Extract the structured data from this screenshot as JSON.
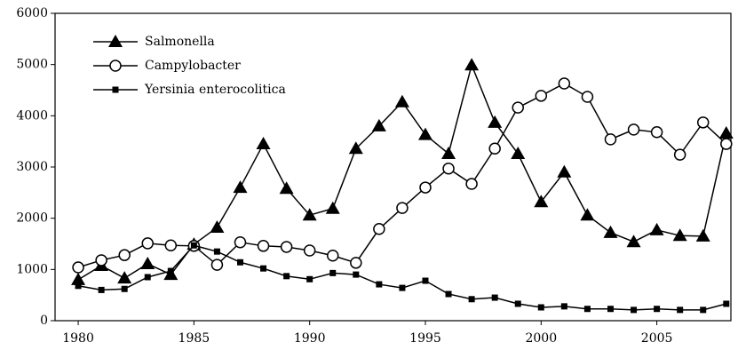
{
  "chart_data": {
    "type": "line",
    "x": [
      1980,
      1981,
      1982,
      1983,
      1984,
      1985,
      1986,
      1987,
      1988,
      1989,
      1990,
      1991,
      1992,
      1993,
      1994,
      1995,
      1996,
      1997,
      1998,
      1999,
      2000,
      2001,
      2002,
      2003,
      2004,
      2005,
      2006,
      2007,
      2008
    ],
    "series": [
      {
        "name": "Salmonella",
        "color": "#000000",
        "marker": "triangle",
        "values": [
          800,
          1075,
          830,
          1110,
          900,
          1490,
          1820,
          2600,
          3450,
          2580,
          2060,
          2190,
          3360,
          3800,
          4270,
          3630,
          3260,
          4990,
          3870,
          3260,
          2320,
          2900,
          2060,
          1720,
          1540,
          1770,
          1660,
          1650,
          3660
        ]
      },
      {
        "name": "Campylobacter",
        "color": "#000000",
        "marker": "circle",
        "values": [
          1040,
          1180,
          1280,
          1510,
          1470,
          1460,
          1090,
          1530,
          1460,
          1440,
          1370,
          1270,
          1130,
          1790,
          2200,
          2600,
          2970,
          2670,
          3360,
          4160,
          4390,
          4630,
          4370,
          3540,
          3730,
          3680,
          3240,
          3870,
          3450
        ]
      },
      {
        "name": "Yersinia enterocolitica",
        "color": "#000000",
        "marker": "square",
        "values": [
          680,
          600,
          620,
          850,
          970,
          1470,
          1350,
          1140,
          1020,
          870,
          810,
          930,
          900,
          710,
          640,
          780,
          520,
          420,
          450,
          330,
          260,
          280,
          230,
          230,
          210,
          230,
          210,
          210,
          330
        ]
      }
    ],
    "xlim": [
      1979,
      2008.2
    ],
    "xticks": [
      1980,
      1985,
      1990,
      1995,
      2000,
      2005
    ],
    "ylim": [
      0,
      6000
    ],
    "yticks": [
      0,
      1000,
      2000,
      3000,
      4000,
      5000,
      6000
    ],
    "legend": "upper-left"
  }
}
